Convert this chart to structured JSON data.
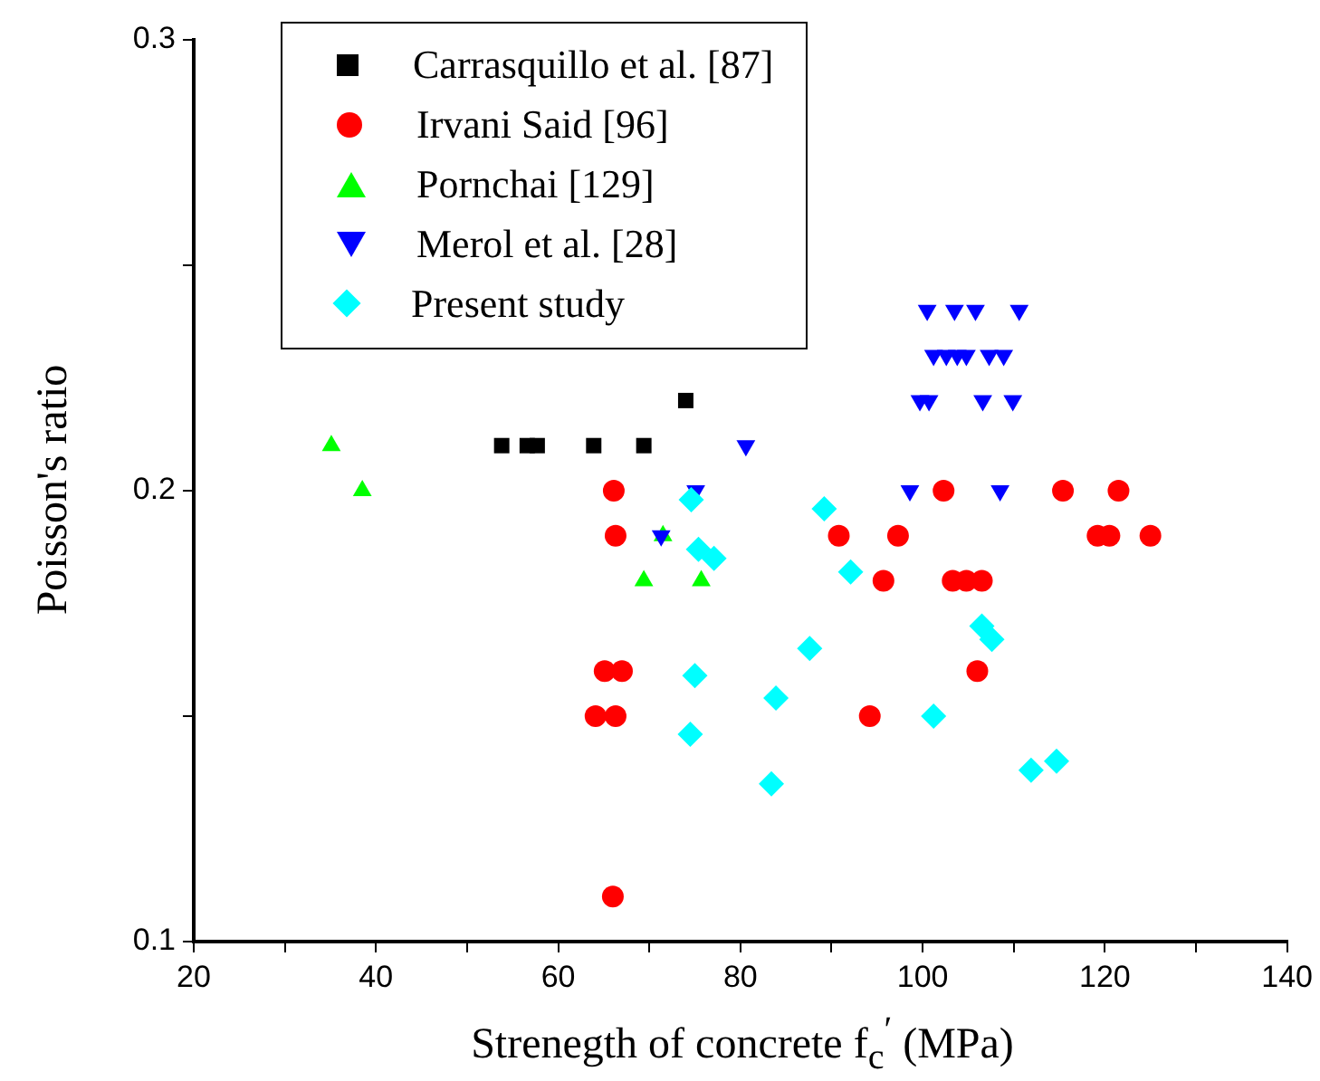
{
  "chart_data": {
    "type": "scatter",
    "xlabel": "Strenegth of concrete f$_{c}$$^{′}$ (MPa)",
    "ylabel": "Poisson's ratio",
    "xlim": [
      20,
      140
    ],
    "xticks": [
      20,
      {
        "value": 30,
        "label": null
      },
      40,
      {
        "value": 50,
        "label": null
      },
      60,
      {
        "value": 70,
        "label": null
      },
      80,
      {
        "value": 90,
        "label": null
      },
      100,
      {
        "value": 110,
        "label": null
      },
      120,
      {
        "value": 130,
        "label": null
      },
      140
    ],
    "ylim": [
      0.1,
      0.3
    ],
    "yticks": [
      0.1,
      {
        "value": 0.15,
        "label": null
      },
      0.2,
      {
        "value": 0.25,
        "label": null
      },
      0.3
    ],
    "grid": false,
    "legend": "top left",
    "series": [
      {
        "name": "Carrasquillo et al. [87]",
        "color": "#000000",
        "marker": "square",
        "x": [
          53.8,
          56.6,
          57.7,
          63.9,
          69.4,
          74.0
        ],
        "values": [
          0.21,
          0.21,
          0.21,
          0.21,
          0.21,
          0.22
        ]
      },
      {
        "name": "Irvani Said [96]",
        "color": "#ff0000",
        "marker": "circle",
        "x": [
          66.1,
          102.3,
          115.4,
          121.5,
          66.3,
          90.8,
          97.3,
          119.2,
          120.5,
          125.0,
          95.7,
          103.3,
          104.8,
          106.5,
          65.1,
          67.0,
          106.0,
          64.1,
          66.3,
          94.2,
          66.0
        ],
        "values": [
          0.2,
          0.2,
          0.2,
          0.2,
          0.19,
          0.19,
          0.19,
          0.19,
          0.19,
          0.19,
          0.18,
          0.18,
          0.18,
          0.18,
          0.16,
          0.16,
          0.16,
          0.15,
          0.15,
          0.15,
          0.11
        ]
      },
      {
        "name": "Pornchai [129]",
        "color": "#00ff00",
        "marker": "triangle",
        "x": [
          35.1,
          38.5,
          71.5,
          69.4,
          75.7
        ],
        "values": [
          0.21,
          0.2,
          0.19,
          0.18,
          0.18
        ]
      },
      {
        "name": "Merol et al. [28]",
        "color": "#0000ff",
        "marker": "triangle-down",
        "x": [
          100.5,
          103.5,
          105.8,
          110.6,
          101.2,
          102.6,
          103.8,
          104.8,
          107.3,
          108.9,
          99.7,
          100.7,
          106.6,
          109.9,
          80.6,
          75.1,
          98.6,
          108.5,
          71.3
        ],
        "values": [
          0.24,
          0.24,
          0.24,
          0.24,
          0.23,
          0.23,
          0.23,
          0.23,
          0.23,
          0.23,
          0.22,
          0.22,
          0.22,
          0.22,
          0.21,
          0.2,
          0.2,
          0.2,
          0.19
        ]
      },
      {
        "name": "Present study",
        "color": "#00ffff",
        "marker": "diamond",
        "x": [
          74.6,
          89.2,
          75.4,
          77.1,
          92.1,
          106.5,
          107.6,
          87.6,
          75.0,
          83.9,
          101.2,
          74.5,
          83.4,
          111.9,
          114.7
        ],
        "values": [
          0.198,
          0.196,
          0.187,
          0.185,
          0.182,
          0.17,
          0.167,
          0.165,
          0.159,
          0.154,
          0.15,
          0.146,
          0.135,
          0.138,
          0.14
        ]
      }
    ]
  }
}
